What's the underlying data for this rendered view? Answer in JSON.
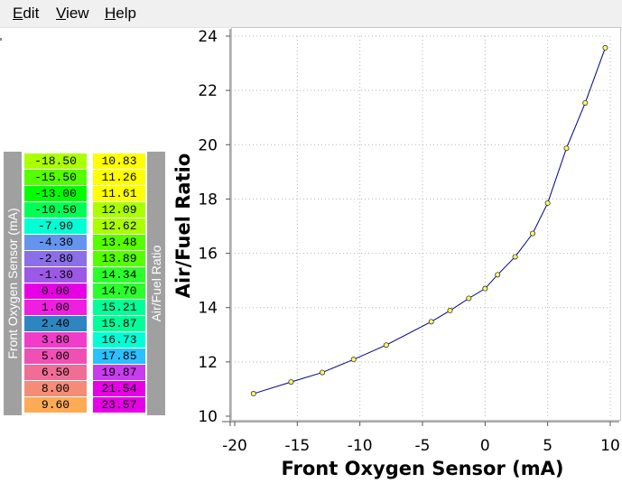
{
  "menu": {
    "items": [
      {
        "first": "E",
        "rest": "dit"
      },
      {
        "first": "V",
        "rest": "iew"
      },
      {
        "first": "H",
        "rest": "elp"
      }
    ]
  },
  "table": {
    "left_label": "Front Oxygen Sensor (mA)",
    "right_label": "Air/Fuel Ratio",
    "rows": [
      {
        "x": "-18.50",
        "y": "10.83",
        "xcolor": "#aaff00",
        "ycolor": "#ffff00"
      },
      {
        "x": "-15.50",
        "y": "11.26",
        "xcolor": "#55ff00",
        "ycolor": "#ffff00"
      },
      {
        "x": "-13.00",
        "y": "11.61",
        "xcolor": "#00ff00",
        "ycolor": "#ffff00"
      },
      {
        "x": "-10.50",
        "y": "12.09",
        "xcolor": "#00ff55",
        "ycolor": "#aaff00"
      },
      {
        "x": "-7.90",
        "y": "12.62",
        "xcolor": "#00ffd5",
        "ycolor": "#aaff00"
      },
      {
        "x": "-4.30",
        "y": "13.48",
        "xcolor": "#6495ed",
        "ycolor": "#55ff00"
      },
      {
        "x": "-2.80",
        "y": "13.89",
        "xcolor": "#8a6fe8",
        "ycolor": "#55ff00"
      },
      {
        "x": "-1.30",
        "y": "14.34",
        "xcolor": "#9b59e6",
        "ycolor": "#2bff2b"
      },
      {
        "x": "0.00",
        "y": "14.70",
        "xcolor": "#e600e6",
        "ycolor": "#2bff2b"
      },
      {
        "x": "1.00",
        "y": "15.21",
        "xcolor": "#f01ee0",
        "ycolor": "#00ff99"
      },
      {
        "x": "2.40",
        "y": "15.87",
        "xcolor": "#2e86c1",
        "ycolor": "#00ff99"
      },
      {
        "x": "3.80",
        "y": "16.73",
        "xcolor": "#f03cc8",
        "ycolor": "#00ffd5"
      },
      {
        "x": "5.00",
        "y": "17.85",
        "xcolor": "#f050b4",
        "ycolor": "#2bc0ff"
      },
      {
        "x": "6.50",
        "y": "19.87",
        "xcolor": "#f06e96",
        "ycolor": "#c83cf0"
      },
      {
        "x": "8.00",
        "y": "21.54",
        "xcolor": "#f58c78",
        "ycolor": "#e600e6"
      },
      {
        "x": "9.60",
        "y": "23.57",
        "xcolor": "#ffaa55",
        "ycolor": "#e600e6"
      }
    ]
  },
  "chart_data": {
    "type": "line",
    "xlabel": "Front Oxygen Sensor (mA)",
    "ylabel": "Air/Fuel Ratio",
    "xlim": [
      -20,
      10
    ],
    "ylim": [
      10,
      24
    ],
    "xticks": [
      -20,
      -15,
      -10,
      -5,
      0,
      5,
      10
    ],
    "yticks": [
      10,
      12,
      14,
      16,
      18,
      20,
      22,
      24
    ],
    "grid": true,
    "line_color": "#00008b",
    "marker_color": "#ffff66",
    "x": [
      -18.5,
      -15.5,
      -13.0,
      -10.5,
      -7.9,
      -4.3,
      -2.8,
      -1.3,
      0.0,
      1.0,
      2.4,
      3.8,
      5.0,
      6.5,
      8.0,
      9.6
    ],
    "y": [
      10.83,
      11.26,
      11.61,
      12.09,
      12.62,
      13.48,
      13.89,
      14.34,
      14.7,
      15.21,
      15.87,
      16.73,
      17.85,
      19.87,
      21.54,
      23.57
    ]
  }
}
